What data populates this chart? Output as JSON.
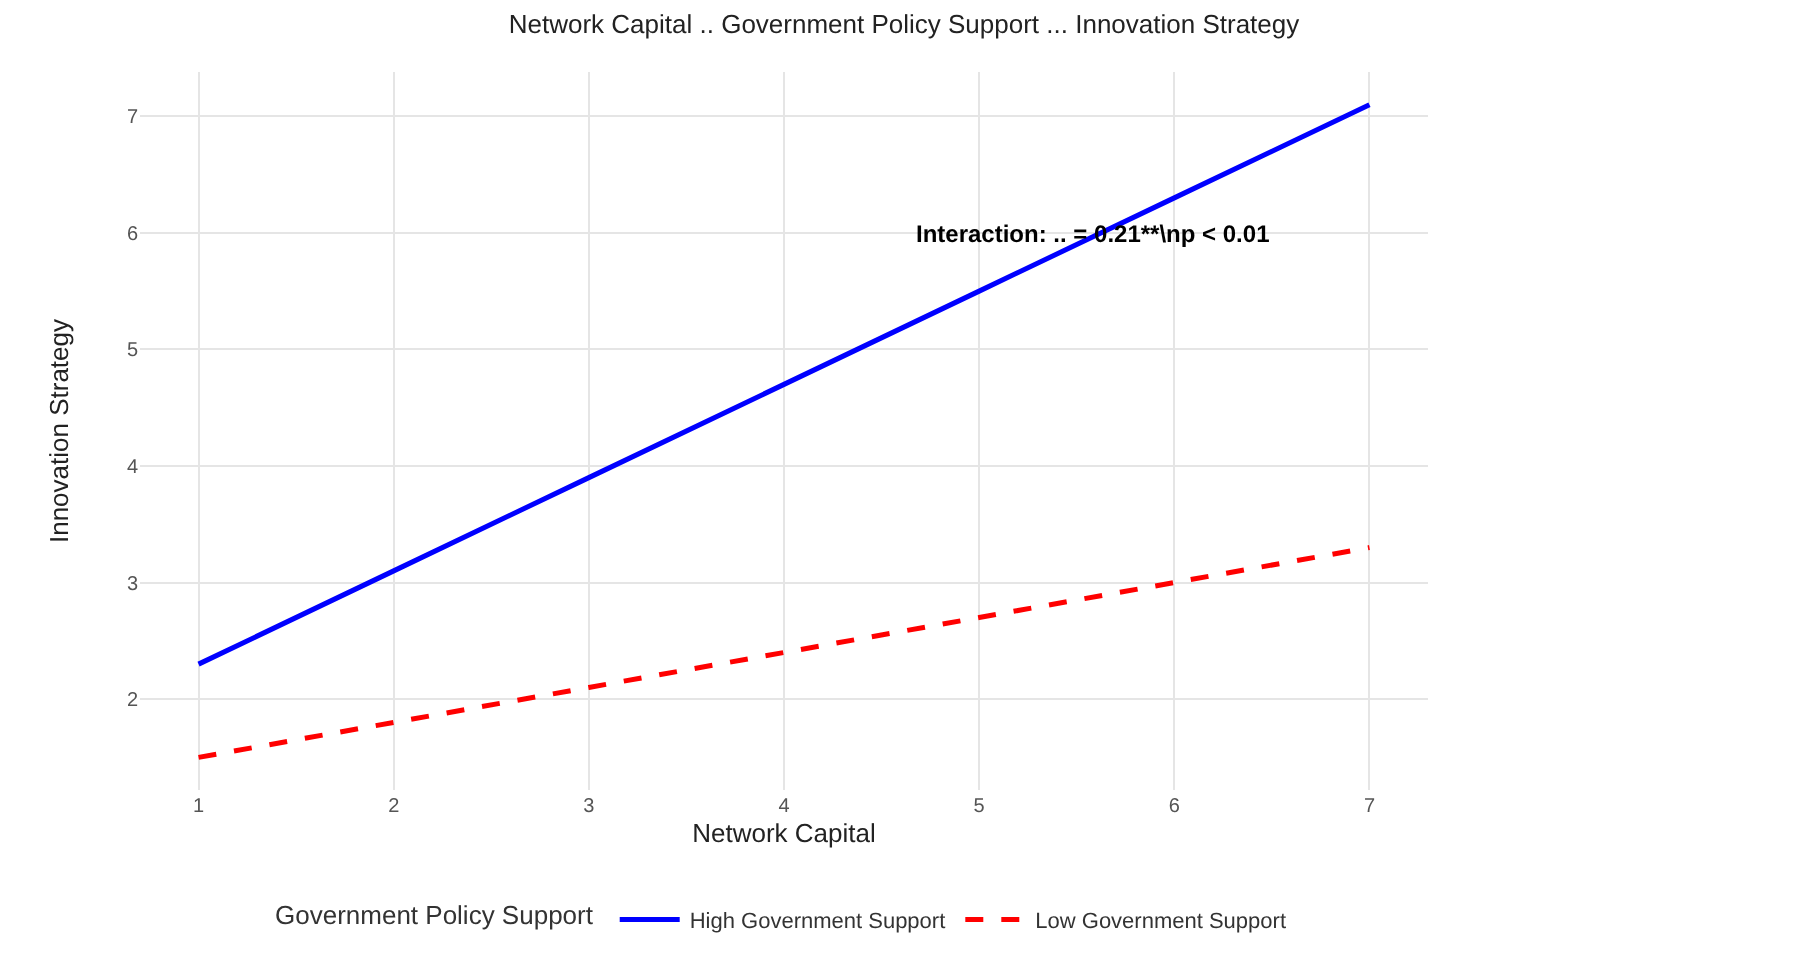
{
  "chart_data": {
    "type": "line",
    "title": "Network Capital .. Government Policy Support ... Innovation Strategy",
    "xlabel": "Network Capital",
    "ylabel": "Innovation Strategy",
    "legend_title": "Government Policy Support",
    "x": [
      1,
      2,
      3,
      4,
      5,
      6,
      7
    ],
    "series": [
      {
        "name": "High Government Support",
        "color": "#0000ff",
        "values": [
          2.3,
          3.1,
          3.9,
          4.7,
          5.5,
          6.3,
          7.1
        ],
        "line_style": "solid"
      },
      {
        "name": "Low Government Support",
        "color": "#ff0000",
        "values": [
          1.5,
          1.8,
          2.1,
          2.4,
          2.7,
          3.0,
          3.3
        ],
        "line_style": "dashed"
      }
    ],
    "xlim": [
      0.7,
      7.3
    ],
    "xticks": [
      1,
      2,
      3,
      4,
      5,
      6,
      7
    ],
    "ylim": [
      1.22,
      7.38
    ],
    "yticks": [
      2,
      3,
      4,
      5,
      6,
      7
    ],
    "grid": true,
    "legend": "bottom",
    "marker": "none",
    "annotations": [
      "Interaction: .. = 0.21**\\np < 0.01"
    ]
  }
}
